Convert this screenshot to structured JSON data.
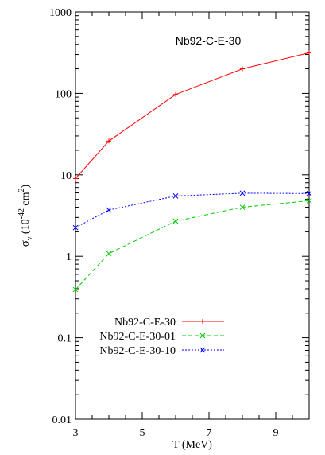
{
  "chart_data": {
    "type": "line",
    "title": "Nb92-C-E-30",
    "xlabel": "T (MeV)",
    "ylabel_parts": [
      "σ",
      "ν",
      " (10",
      "-42",
      " cm",
      "2",
      ")"
    ],
    "xlim": [
      3,
      10
    ],
    "ylim": [
      0.01,
      1000
    ],
    "yscale": "log",
    "x_ticks": [
      3,
      5,
      7,
      9
    ],
    "x_tick_labels": [
      "3",
      "5",
      "7",
      "9"
    ],
    "y_ticks": [
      0.01,
      0.1,
      1,
      10,
      100,
      1000
    ],
    "y_tick_labels": [
      "0.01",
      "0.1",
      "1",
      "10",
      "100",
      "1000"
    ],
    "grid": false,
    "legend_position": "lower-left",
    "series": [
      {
        "name": "Nb92-C-E-30",
        "color": "#ff0000",
        "dash": "solid",
        "marker": "plus",
        "x": [
          3,
          4,
          6,
          8,
          10
        ],
        "y": [
          9.0,
          26.0,
          97.0,
          200.0,
          315.0
        ]
      },
      {
        "name": "Nb92-C-E-30-01",
        "color": "#00cc00",
        "dash": "dashed",
        "marker": "cross",
        "x": [
          3,
          4,
          6,
          8,
          10
        ],
        "y": [
          0.39,
          1.08,
          2.7,
          4.0,
          4.8
        ]
      },
      {
        "name": "Nb92-C-E-30-10",
        "color": "#0000ff",
        "dash": "dotted",
        "marker": "cross",
        "x": [
          3,
          4,
          6,
          8,
          10
        ],
        "y": [
          2.25,
          3.7,
          5.5,
          5.95,
          5.9
        ]
      }
    ]
  }
}
